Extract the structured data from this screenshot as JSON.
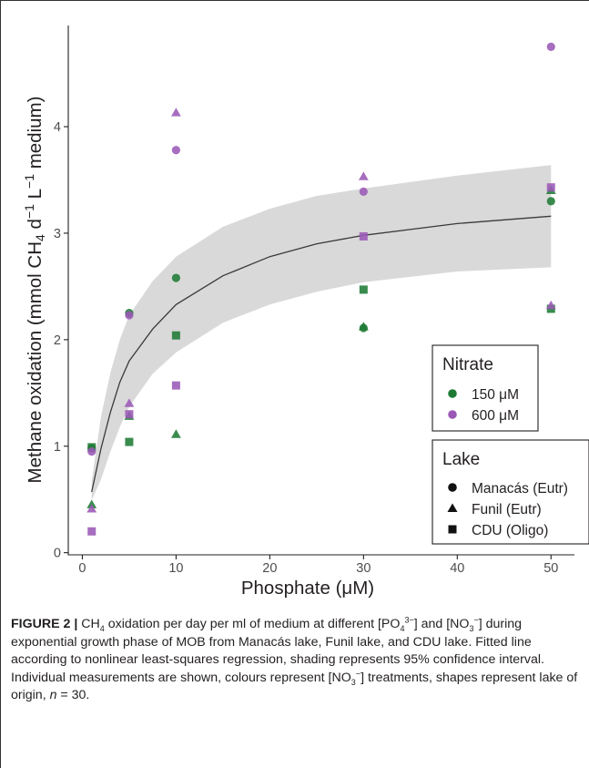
{
  "chart_data": {
    "type": "scatter",
    "xlabel": "Phosphate (μM)",
    "ylabel_parts": [
      "Methane oxidation (mmol  CH",
      "4",
      " d",
      "−1",
      " L",
      "−1",
      " medium)"
    ],
    "xlim": [
      -1.5,
      52.5
    ],
    "ylim": [
      -0.02,
      4.95
    ],
    "xticks": [
      0,
      10,
      20,
      30,
      40,
      50
    ],
    "yticks": [
      0,
      1,
      2,
      3,
      4
    ],
    "grid": false,
    "fit": {
      "model": "nonlinear least-squares",
      "x": [
        1,
        2,
        3,
        4,
        5,
        7.5,
        10,
        15,
        20,
        25,
        30,
        40,
        50
      ],
      "y": [
        0.57,
        0.98,
        1.32,
        1.6,
        1.8,
        2.1,
        2.33,
        2.6,
        2.78,
        2.9,
        2.98,
        3.09,
        3.16
      ],
      "ci_lower": [
        0.49,
        0.69,
        0.95,
        1.18,
        1.37,
        1.68,
        1.88,
        2.16,
        2.33,
        2.45,
        2.54,
        2.64,
        2.68
      ],
      "ci_upper": [
        0.67,
        1.28,
        1.69,
        2.0,
        2.23,
        2.55,
        2.78,
        3.06,
        3.23,
        3.35,
        3.42,
        3.54,
        3.64
      ],
      "line_color": "#3a3a3a",
      "band_color": "#d9d9d9"
    },
    "colors": {
      "150": "#1e7b35",
      "600": "#9b59b6"
    },
    "points": [
      {
        "x": 1,
        "y": 0.98,
        "nitrate": "150",
        "lake": "manacas"
      },
      {
        "x": 1,
        "y": 0.45,
        "nitrate": "150",
        "lake": "funil"
      },
      {
        "x": 1,
        "y": 0.99,
        "nitrate": "150",
        "lake": "cdu"
      },
      {
        "x": 1,
        "y": 0.95,
        "nitrate": "600",
        "lake": "manacas"
      },
      {
        "x": 1,
        "y": 0.41,
        "nitrate": "600",
        "lake": "funil"
      },
      {
        "x": 1,
        "y": 0.2,
        "nitrate": "600",
        "lake": "cdu"
      },
      {
        "x": 5,
        "y": 2.25,
        "nitrate": "150",
        "lake": "manacas"
      },
      {
        "x": 5,
        "y": 1.28,
        "nitrate": "150",
        "lake": "funil"
      },
      {
        "x": 5,
        "y": 1.04,
        "nitrate": "150",
        "lake": "cdu"
      },
      {
        "x": 5,
        "y": 2.23,
        "nitrate": "600",
        "lake": "manacas"
      },
      {
        "x": 5,
        "y": 1.4,
        "nitrate": "600",
        "lake": "funil"
      },
      {
        "x": 5,
        "y": 1.3,
        "nitrate": "600",
        "lake": "cdu"
      },
      {
        "x": 10,
        "y": 2.58,
        "nitrate": "150",
        "lake": "manacas"
      },
      {
        "x": 10,
        "y": 1.11,
        "nitrate": "150",
        "lake": "funil"
      },
      {
        "x": 10,
        "y": 2.04,
        "nitrate": "150",
        "lake": "cdu"
      },
      {
        "x": 10,
        "y": 3.78,
        "nitrate": "600",
        "lake": "manacas"
      },
      {
        "x": 10,
        "y": 4.13,
        "nitrate": "600",
        "lake": "funil"
      },
      {
        "x": 10,
        "y": 1.57,
        "nitrate": "600",
        "lake": "cdu"
      },
      {
        "x": 30,
        "y": 2.11,
        "nitrate": "150",
        "lake": "manacas"
      },
      {
        "x": 30,
        "y": 2.12,
        "nitrate": "150",
        "lake": "funil"
      },
      {
        "x": 30,
        "y": 2.47,
        "nitrate": "150",
        "lake": "cdu"
      },
      {
        "x": 30,
        "y": 3.39,
        "nitrate": "600",
        "lake": "manacas"
      },
      {
        "x": 30,
        "y": 3.53,
        "nitrate": "600",
        "lake": "funil"
      },
      {
        "x": 30,
        "y": 2.97,
        "nitrate": "600",
        "lake": "cdu"
      },
      {
        "x": 50,
        "y": 3.3,
        "nitrate": "150",
        "lake": "manacas"
      },
      {
        "x": 50,
        "y": 3.4,
        "nitrate": "150",
        "lake": "funil"
      },
      {
        "x": 50,
        "y": 2.29,
        "nitrate": "150",
        "lake": "cdu"
      },
      {
        "x": 50,
        "y": 4.75,
        "nitrate": "600",
        "lake": "manacas"
      },
      {
        "x": 50,
        "y": 2.32,
        "nitrate": "600",
        "lake": "funil"
      },
      {
        "x": 50,
        "y": 3.43,
        "nitrate": "600",
        "lake": "cdu"
      }
    ],
    "legend_nitrate": {
      "title": "Nitrate",
      "placement": "right",
      "items": [
        {
          "key": "150",
          "label": "150 μM"
        },
        {
          "key": "600",
          "label": "600 μM"
        }
      ]
    },
    "legend_lake": {
      "title": "Lake",
      "placement": "bottom-right",
      "items": [
        {
          "key": "manacas",
          "shape": "circle",
          "label": "Manacás (Eutr)"
        },
        {
          "key": "funil",
          "shape": "triangle",
          "label": "Funil (Eutr)"
        },
        {
          "key": "cdu",
          "shape": "square",
          "label": "CDU (Oligo)"
        }
      ]
    }
  },
  "caption": {
    "label": "FIGURE 2 |",
    "s1": " CH",
    "s1_sub": "4",
    "s2": " oxidation per day per ml of medium at different [PO",
    "s2_sub": "4",
    "s2_sup": "3−",
    "s3": "] and [NO",
    "s3_sub": "3",
    "s3_sup": "−",
    "s4": "] during exponential growth phase of MOB from Manacás lake, Funil lake, and CDU lake. Fitted line according to nonlinear least-squares regression, shading represents 95% confidence interval. Individual measurements are shown, colours represent [NO",
    "s4_sub": "3",
    "s4_sup": "−",
    "s5": "] treatments, shapes represent lake of origin, ",
    "n_var": "n",
    "s6": " = 30."
  }
}
